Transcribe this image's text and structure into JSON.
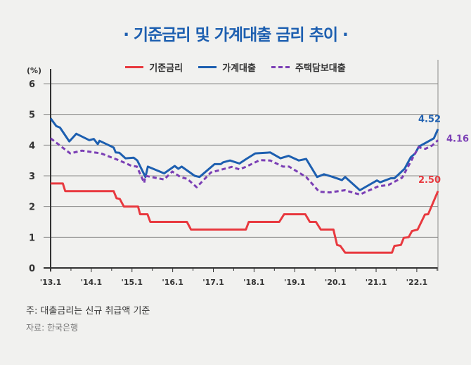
{
  "title": "· 기준금리 및 가계대출 금리 추이 ·",
  "note": "주: 대출금리는 신규 취급액 기준",
  "source": "자료: 한국은행",
  "chart_data": {
    "type": "line",
    "title": "기준금리 및 가계대출 금리 추이",
    "ylabel": "(%)",
    "ylim": [
      0,
      6
    ],
    "yticks": [
      "0",
      "1",
      "2",
      "3",
      "4",
      "5",
      "6"
    ],
    "xlim": [
      2013.0,
      2022.52
    ],
    "xticks": [
      {
        "x": 2013.0,
        "label": "'13.1"
      },
      {
        "x": 2014.0,
        "label": "'14.1"
      },
      {
        "x": 2015.0,
        "label": "'15.1"
      },
      {
        "x": 2016.0,
        "label": "'16.1"
      },
      {
        "x": 2017.0,
        "label": "'17.1"
      },
      {
        "x": 2018.0,
        "label": "'18.1"
      },
      {
        "x": 2019.0,
        "label": "'19.1"
      },
      {
        "x": 2020.0,
        "label": "'20.1"
      },
      {
        "x": 2021.0,
        "label": "'21.1"
      },
      {
        "x": 2022.0,
        "label": "'22.1"
      }
    ],
    "grid": true,
    "legend": "top-center",
    "series": [
      {
        "name": "기준금리",
        "color": "#e8393f",
        "style": "solid",
        "end_label": "2.50",
        "points": [
          [
            2013.0,
            2.75
          ],
          [
            2013.3,
            2.75
          ],
          [
            2013.36,
            2.5
          ],
          [
            2014.55,
            2.5
          ],
          [
            2014.62,
            2.27
          ],
          [
            2014.7,
            2.25
          ],
          [
            2014.8,
            2.0
          ],
          [
            2015.15,
            2.0
          ],
          [
            2015.2,
            1.75
          ],
          [
            2015.38,
            1.75
          ],
          [
            2015.45,
            1.5
          ],
          [
            2016.35,
            1.5
          ],
          [
            2016.45,
            1.25
          ],
          [
            2017.8,
            1.25
          ],
          [
            2017.87,
            1.5
          ],
          [
            2018.62,
            1.5
          ],
          [
            2018.74,
            1.75
          ],
          [
            2019.26,
            1.75
          ],
          [
            2019.37,
            1.5
          ],
          [
            2019.52,
            1.5
          ],
          [
            2019.64,
            1.25
          ],
          [
            2019.95,
            1.25
          ],
          [
            2020.04,
            0.75
          ],
          [
            2020.12,
            0.72
          ],
          [
            2020.24,
            0.5
          ],
          [
            2021.39,
            0.5
          ],
          [
            2021.45,
            0.72
          ],
          [
            2021.61,
            0.75
          ],
          [
            2021.68,
            0.98
          ],
          [
            2021.8,
            1.0
          ],
          [
            2021.88,
            1.2
          ],
          [
            2022.02,
            1.25
          ],
          [
            2022.2,
            1.74
          ],
          [
            2022.28,
            1.75
          ],
          [
            2022.52,
            2.5
          ]
        ]
      },
      {
        "name": "가계대출",
        "color": "#1d5fb0",
        "style": "solid",
        "end_label": "4.52",
        "points": [
          [
            2013.0,
            4.87
          ],
          [
            2013.14,
            4.62
          ],
          [
            2013.23,
            4.57
          ],
          [
            2013.46,
            4.12
          ],
          [
            2013.63,
            4.37
          ],
          [
            2013.95,
            4.16
          ],
          [
            2014.06,
            4.2
          ],
          [
            2014.16,
            4.03
          ],
          [
            2014.2,
            4.14
          ],
          [
            2014.55,
            3.92
          ],
          [
            2014.6,
            3.76
          ],
          [
            2014.69,
            3.75
          ],
          [
            2014.84,
            3.57
          ],
          [
            2015.04,
            3.59
          ],
          [
            2015.13,
            3.5
          ],
          [
            2015.33,
            2.96
          ],
          [
            2015.39,
            3.3
          ],
          [
            2015.79,
            3.08
          ],
          [
            2016.05,
            3.32
          ],
          [
            2016.14,
            3.23
          ],
          [
            2016.22,
            3.3
          ],
          [
            2016.54,
            3.0
          ],
          [
            2016.66,
            2.96
          ],
          [
            2017.03,
            3.38
          ],
          [
            2017.18,
            3.38
          ],
          [
            2017.24,
            3.44
          ],
          [
            2017.41,
            3.5
          ],
          [
            2017.64,
            3.4
          ],
          [
            2017.81,
            3.55
          ],
          [
            2018.03,
            3.73
          ],
          [
            2018.4,
            3.76
          ],
          [
            2018.65,
            3.57
          ],
          [
            2018.85,
            3.65
          ],
          [
            2019.1,
            3.5
          ],
          [
            2019.28,
            3.55
          ],
          [
            2019.55,
            2.96
          ],
          [
            2019.72,
            3.05
          ],
          [
            2019.9,
            2.98
          ],
          [
            2020.16,
            2.86
          ],
          [
            2020.24,
            2.96
          ],
          [
            2020.6,
            2.53
          ],
          [
            2021.02,
            2.85
          ],
          [
            2021.1,
            2.79
          ],
          [
            2021.36,
            2.92
          ],
          [
            2021.45,
            2.92
          ],
          [
            2021.7,
            3.23
          ],
          [
            2021.85,
            3.6
          ],
          [
            2021.96,
            3.73
          ],
          [
            2022.05,
            3.95
          ],
          [
            2022.42,
            4.22
          ],
          [
            2022.52,
            4.52
          ]
        ]
      },
      {
        "name": "주택담보대출",
        "color": "#7b3fb5",
        "style": "dashed",
        "end_label": "4.16",
        "points": [
          [
            2013.0,
            4.22
          ],
          [
            2013.48,
            3.73
          ],
          [
            2013.77,
            3.82
          ],
          [
            2014.24,
            3.73
          ],
          [
            2014.69,
            3.5
          ],
          [
            2014.98,
            3.33
          ],
          [
            2015.12,
            3.3
          ],
          [
            2015.3,
            2.77
          ],
          [
            2015.33,
            3.0
          ],
          [
            2015.79,
            2.88
          ],
          [
            2015.99,
            3.14
          ],
          [
            2016.19,
            2.96
          ],
          [
            2016.36,
            2.9
          ],
          [
            2016.59,
            2.63
          ],
          [
            2016.94,
            3.11
          ],
          [
            2017.45,
            3.29
          ],
          [
            2017.64,
            3.21
          ],
          [
            2017.81,
            3.3
          ],
          [
            2018.14,
            3.51
          ],
          [
            2018.4,
            3.5
          ],
          [
            2018.71,
            3.3
          ],
          [
            2018.86,
            3.3
          ],
          [
            2019.28,
            2.96
          ],
          [
            2019.6,
            2.48
          ],
          [
            2019.86,
            2.46
          ],
          [
            2020.23,
            2.53
          ],
          [
            2020.6,
            2.39
          ],
          [
            2021.06,
            2.66
          ],
          [
            2021.3,
            2.7
          ],
          [
            2021.64,
            2.94
          ],
          [
            2022.04,
            3.93
          ],
          [
            2022.21,
            3.88
          ],
          [
            2022.38,
            3.99
          ],
          [
            2022.52,
            4.16
          ]
        ]
      }
    ]
  }
}
